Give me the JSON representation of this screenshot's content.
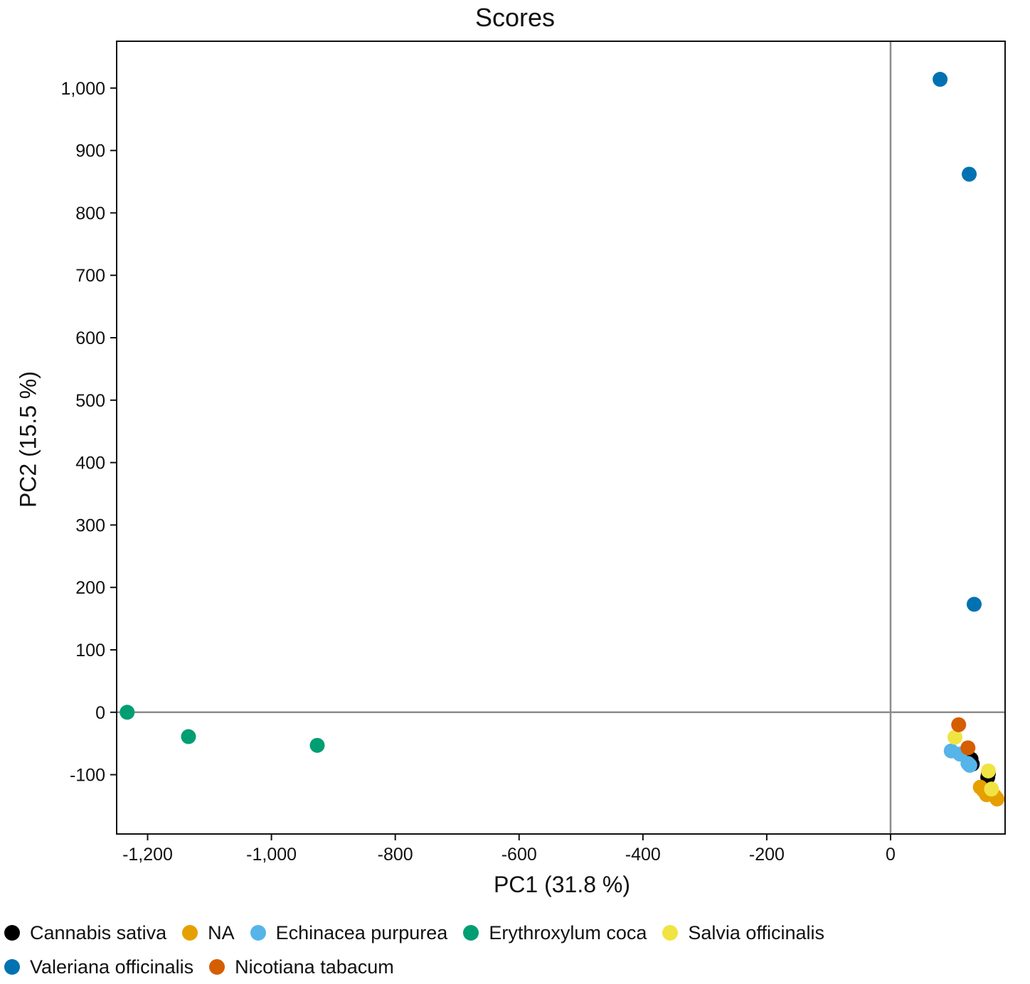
{
  "chart_data": {
    "type": "scatter",
    "title": "Scores",
    "xlabel": "PC1 (31.8 %)",
    "ylabel": "PC2 (15.5 %)",
    "xlim": [
      -1250,
      185
    ],
    "ylim": [
      -195,
      1075
    ],
    "xticks": [
      -1200,
      -1000,
      -800,
      -600,
      -400,
      -200,
      0
    ],
    "xtick_labels": [
      "-1,200",
      "-1,000",
      "-800",
      "-600",
      "-400",
      "-200",
      "0"
    ],
    "yticks": [
      -100,
      0,
      100,
      200,
      300,
      400,
      500,
      600,
      700,
      800,
      900,
      1000
    ],
    "ytick_labels": [
      "-100",
      "0",
      "100",
      "200",
      "300",
      "400",
      "500",
      "600",
      "700",
      "800",
      "900",
      "1,000"
    ],
    "grid": false,
    "zero_lines": true,
    "legend_position": "bottom",
    "series": [
      {
        "name": "Cannabis sativa",
        "color": "#000000",
        "points": [
          [
            130,
            -75
          ],
          [
            132,
            -83
          ],
          [
            158,
            -98
          ],
          [
            157,
            -104
          ]
        ]
      },
      {
        "name": "NA",
        "color": "#E69F00",
        "points": [
          [
            145,
            -120
          ],
          [
            155,
            -132
          ],
          [
            162,
            -128
          ],
          [
            168,
            -134
          ],
          [
            172,
            -139
          ],
          [
            150,
            -125
          ]
        ]
      },
      {
        "name": "Echinacea purpurea",
        "color": "#56B4E9",
        "points": [
          [
            98,
            -62
          ],
          [
            112,
            -67
          ],
          [
            125,
            -82
          ],
          [
            128,
            -85
          ]
        ]
      },
      {
        "name": "Erythroxylum coca",
        "color": "#009E73",
        "points": [
          [
            -1233,
            0
          ],
          [
            -1134,
            -39
          ],
          [
            -926,
            -53
          ]
        ]
      },
      {
        "name": "Salvia officinalis",
        "color": "#F0E442",
        "points": [
          [
            104,
            -40
          ],
          [
            158,
            -94
          ],
          [
            163,
            -123
          ]
        ]
      },
      {
        "name": "Valeriana officinalis",
        "color": "#0072B2",
        "points": [
          [
            80,
            1014
          ],
          [
            127,
            862
          ],
          [
            135,
            173
          ]
        ]
      },
      {
        "name": "Nicotiana tabacum",
        "color": "#D55E00",
        "points": [
          [
            110,
            -20
          ],
          [
            125,
            -57
          ]
        ]
      }
    ]
  }
}
